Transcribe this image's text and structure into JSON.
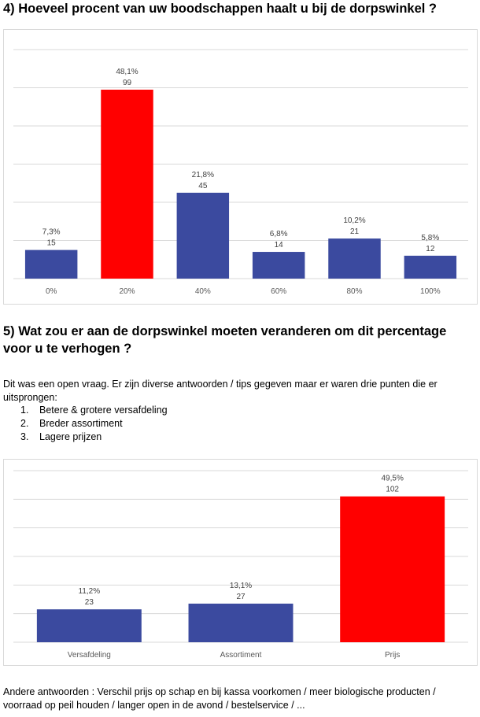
{
  "question4": {
    "title": "4) Hoeveel procent van uw boodschappen haalt u bij de dorpswinkel ?"
  },
  "question5": {
    "title": "5) Wat zou er aan de dorpswinkel moeten veranderen om dit percentage voor u te verhogen ?",
    "intro": "Dit was een open vraag. Er zijn diverse antwoorden / tips gegeven maar er waren drie punten die er uitsprongen:",
    "list": [
      {
        "num": "1.",
        "text": "Betere & grotere versafdeling"
      },
      {
        "num": "2.",
        "text": "Breder assortiment"
      },
      {
        "num": "3.",
        "text": "Lagere prijzen"
      }
    ],
    "other": "Andere antwoorden : Verschil prijs op schap en bij kassa voorkomen / meer biologische producten / voorraad op peil houden / langer open in de avond / bestelservice / ..."
  },
  "colors": {
    "bar": "#3b4a9f",
    "highlight": "#ff0000",
    "grid": "#d9d9d9"
  },
  "chart_data": [
    {
      "type": "bar",
      "categories": [
        "0%",
        "20%",
        "40%",
        "60%",
        "80%",
        "100%"
      ],
      "values": [
        15,
        99,
        45,
        14,
        21,
        12
      ],
      "labels_pct": [
        "7,3%",
        "48,1%",
        "21,8%",
        "6,8%",
        "10,2%",
        "5,8%"
      ],
      "highlight_index": 1,
      "ylim": [
        0,
        120
      ],
      "grid": true
    },
    {
      "type": "bar",
      "categories": [
        "Versafdeling",
        "Assortiment",
        "Prijs"
      ],
      "values": [
        23,
        27,
        102
      ],
      "labels_pct": [
        "11,2%",
        "13,1%",
        "49,5%"
      ],
      "highlight_index": 2,
      "ylim": [
        0,
        120
      ],
      "grid": true
    }
  ]
}
